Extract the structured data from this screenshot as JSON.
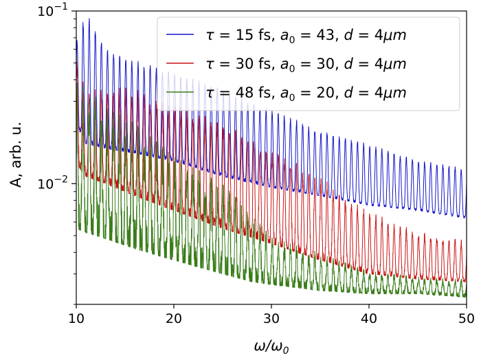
{
  "chart_data": {
    "type": "line",
    "title": "",
    "xlabel": "ω/ω",
    "xlabel_sub": "0",
    "ylabel": "A, arb. u.",
    "xlim": [
      10,
      50
    ],
    "ylim": [
      0.002,
      0.1
    ],
    "y_scale": "log",
    "grid": false,
    "legend_position": "top-right",
    "x_ticks": [
      10,
      20,
      30,
      40,
      50
    ],
    "x_tick_labels": [
      "10",
      "20",
      "30",
      "40",
      "50"
    ],
    "y_major_ticks": [
      {
        "value": 0.01,
        "base": "10",
        "exp": "−2"
      },
      {
        "value": 0.1,
        "base": "10",
        "exp": "−1"
      }
    ],
    "harmonic_spacing": 0.625,
    "series": [
      {
        "name": "τ = 15 fs, a₀ = 43, d = 4μm",
        "color": "#1414c8",
        "legend": {
          "tau": "15",
          "a0": "43",
          "d": "4"
        },
        "envelope": {
          "x": [
            10,
            11,
            13,
            16,
            20,
            25,
            30,
            35,
            40,
            45,
            50
          ],
          "peak": [
            0.065,
            0.095,
            0.06,
            0.05,
            0.043,
            0.034,
            0.026,
            0.02,
            0.0165,
            0.0135,
            0.012
          ],
          "trough": [
            0.022,
            0.017,
            0.016,
            0.015,
            0.0135,
            0.011,
            0.0095,
            0.0085,
            0.0075,
            0.007,
            0.0063
          ]
        }
      },
      {
        "name": "τ = 30 fs, a₀ = 30, d = 4μm",
        "color": "#c81414",
        "legend": {
          "tau": "30",
          "a0": "30",
          "d": "4"
        },
        "envelope": {
          "x": [
            10,
            11,
            13,
            16,
            20,
            25,
            30,
            35,
            40,
            45,
            50
          ],
          "peak": [
            0.05,
            0.032,
            0.033,
            0.032,
            0.026,
            0.021,
            0.015,
            0.01,
            0.0065,
            0.005,
            0.0045
          ],
          "trough": [
            0.013,
            0.011,
            0.01,
            0.0085,
            0.007,
            0.0055,
            0.0045,
            0.0036,
            0.003,
            0.0028,
            0.0027
          ]
        }
      },
      {
        "name": "τ = 48 fs, a₀ = 20, d = 4μm",
        "color": "#3a7d1a",
        "legend": {
          "tau": "48",
          "a0": "20",
          "d": "4"
        },
        "envelope": {
          "x": [
            10,
            11,
            13,
            16,
            20,
            25,
            28,
            30,
            35,
            40,
            45,
            50
          ],
          "peak": [
            0.03,
            0.028,
            0.022,
            0.018,
            0.012,
            0.0085,
            0.006,
            0.0045,
            0.0037,
            0.003,
            0.0028,
            0.0027
          ],
          "trough": [
            0.0055,
            0.0052,
            0.0048,
            0.0042,
            0.0036,
            0.003,
            0.0027,
            0.0026,
            0.0024,
            0.0023,
            0.0023,
            0.0022
          ]
        }
      }
    ]
  }
}
